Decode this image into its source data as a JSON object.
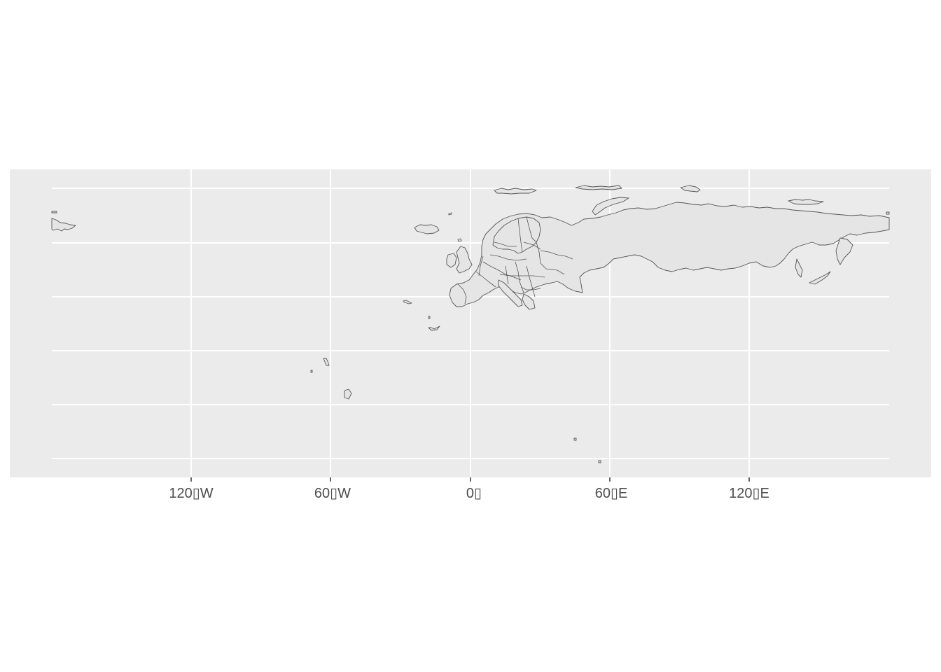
{
  "map": {
    "panel_color": "#ebebeb",
    "grid_color": "#ffffff",
    "land_fill": "#e5e5e5",
    "outline_color": "#555555",
    "x_axis": {
      "ticks": [
        {
          "lon": -120,
          "label": "120▯W"
        },
        {
          "lon": -60,
          "label": "60▯W"
        },
        {
          "lon": 0,
          "label": "0▯"
        },
        {
          "lon": 60,
          "label": "60▯E"
        },
        {
          "lon": 120,
          "label": "120▯E"
        }
      ]
    },
    "y_axis": {
      "gridlines_unlabeled": 6
    }
  }
}
